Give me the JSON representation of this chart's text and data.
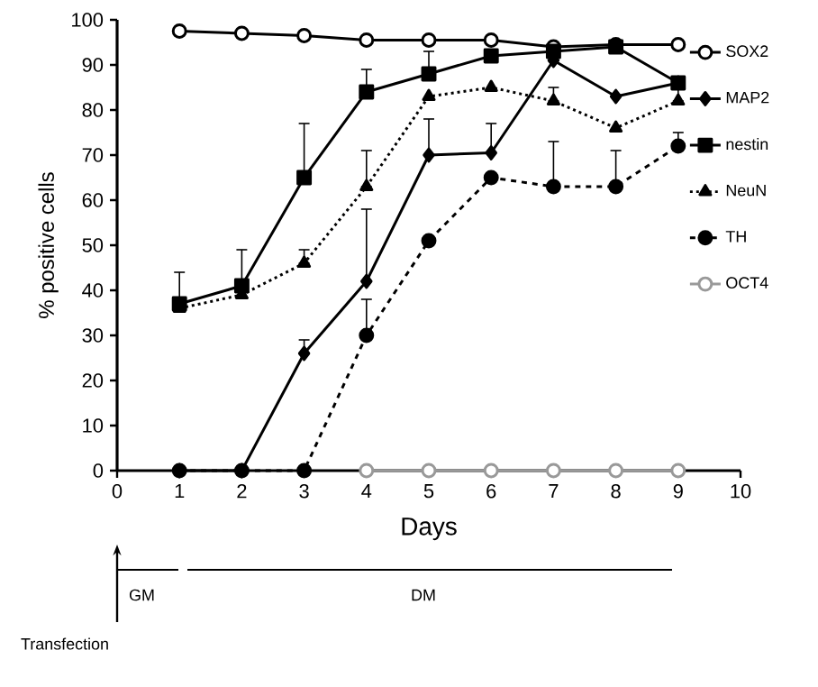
{
  "chart_data": {
    "type": "line",
    "xlabel": "Days",
    "ylabel": "% positive cells",
    "x": [
      1,
      2,
      3,
      4,
      5,
      6,
      7,
      8,
      9
    ],
    "xlim": [
      0,
      10
    ],
    "xticks": [
      0,
      1,
      2,
      3,
      4,
      5,
      6,
      7,
      8,
      9,
      10
    ],
    "ylim": [
      0,
      100
    ],
    "yticks": [
      0,
      10,
      20,
      30,
      40,
      50,
      60,
      70,
      80,
      90,
      100
    ],
    "grid": false,
    "legend": "right",
    "annotations": [
      "GM",
      "DM",
      "Transfection"
    ],
    "series": [
      {
        "name": "SOX2",
        "color": "#000000",
        "marker": "open circle",
        "line_style": "solid",
        "values": [
          97.5,
          97,
          96.5,
          95.5,
          95.5,
          95.5,
          94,
          94.5,
          94.5
        ]
      },
      {
        "name": "MAP2",
        "color": "#000000",
        "marker": "diamond",
        "line_style": "solid",
        "values": [
          0,
          0,
          26,
          42,
          70,
          70.5,
          91,
          83,
          86
        ],
        "errors": [
          null,
          null,
          [
            26,
            29
          ],
          [
            42,
            58
          ],
          [
            70,
            78
          ],
          [
            70.5,
            77
          ],
          null,
          null,
          null
        ]
      },
      {
        "name": "nestin",
        "color": "#000000",
        "marker": "square",
        "line_style": "solid",
        "values": [
          37,
          41,
          65,
          84,
          88,
          92,
          93,
          94,
          86
        ],
        "errors": [
          [
            37,
            44
          ],
          [
            41,
            49
          ],
          [
            65,
            77
          ],
          [
            84,
            89
          ],
          [
            88,
            93
          ],
          null,
          null,
          null,
          null
        ]
      },
      {
        "name": "NeuN",
        "color": "#000000",
        "marker": "triangle",
        "line_style": "dotted",
        "values": [
          36,
          39,
          46,
          63,
          83,
          85,
          82,
          76,
          82
        ],
        "errors": [
          null,
          null,
          [
            46,
            49
          ],
          [
            63,
            71
          ],
          null,
          null,
          [
            82,
            85
          ],
          null,
          [
            82,
            85
          ]
        ]
      },
      {
        "name": "TH",
        "color": "#000000",
        "marker": "circle",
        "line_style": "dashed",
        "values": [
          0,
          0,
          0,
          30,
          51,
          65,
          63,
          63,
          72
        ],
        "errors": [
          null,
          null,
          null,
          [
            30,
            38
          ],
          null,
          null,
          [
            63,
            73
          ],
          [
            63,
            71
          ],
          [
            72,
            75
          ]
        ]
      },
      {
        "name": "OCT4",
        "color": "#999999",
        "marker": "open circle",
        "line_style": "solid",
        "values": [
          null,
          null,
          null,
          0,
          0,
          0,
          0,
          0,
          0
        ]
      }
    ]
  }
}
